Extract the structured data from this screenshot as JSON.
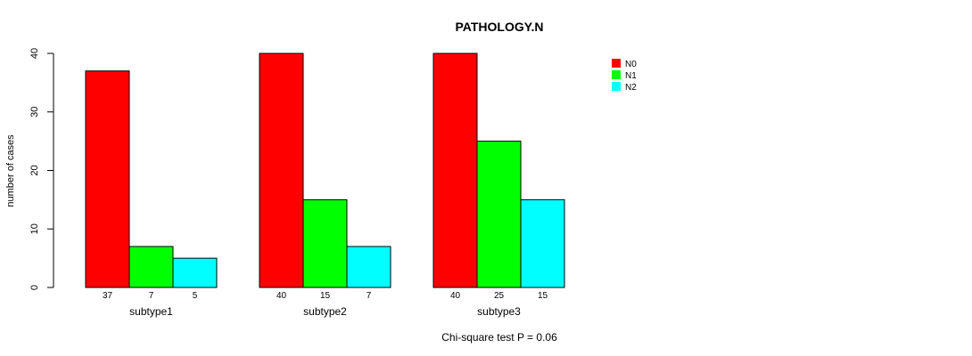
{
  "chart_data": {
    "type": "bar",
    "title": "PATHOLOGY.N",
    "ylabel": "number of cases",
    "xlabel": "",
    "ylim": [
      0,
      40
    ],
    "yticks": [
      0,
      10,
      20,
      30,
      40
    ],
    "categories": [
      "subtype1",
      "subtype2",
      "subtype3"
    ],
    "series": [
      {
        "name": "N0",
        "color": "#ff0000",
        "values": [
          37,
          40,
          40
        ]
      },
      {
        "name": "N1",
        "color": "#00ff00",
        "values": [
          7,
          15,
          25
        ]
      },
      {
        "name": "N2",
        "color": "#00ffff",
        "values": [
          5,
          7,
          15
        ]
      }
    ],
    "bar_labels": [
      [
        "37",
        "7",
        "5"
      ],
      [
        "40",
        "15",
        "7"
      ],
      [
        "40",
        "25",
        "15"
      ]
    ],
    "legend_position": "top-right",
    "annotation": "Chi-square test P = 0.06",
    "grid": false
  }
}
